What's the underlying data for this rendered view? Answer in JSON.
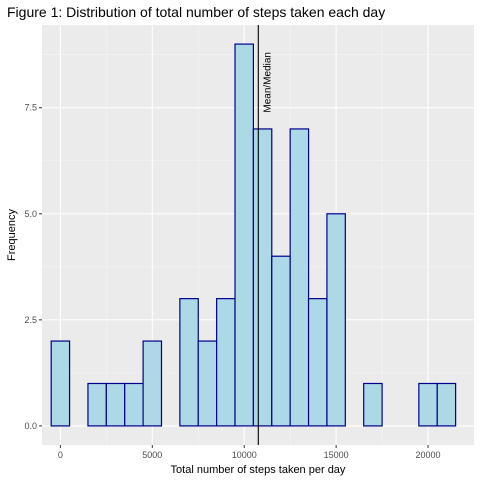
{
  "title": "Figure 1: Distribution of total number of steps taken each day",
  "chart_data": {
    "type": "bar",
    "title": "Figure 1: Distribution of total number of steps taken each day",
    "xlabel": "Total number of steps taken per day",
    "ylabel": "Frequency",
    "xlim": [
      -1000,
      22500
    ],
    "ylim": [
      -0.45,
      9.45
    ],
    "bin_width": 1000,
    "bin_centers": [
      0,
      1000,
      2000,
      3000,
      4000,
      5000,
      6000,
      7000,
      8000,
      9000,
      10000,
      11000,
      12000,
      13000,
      14000,
      15000,
      16000,
      17000,
      18000,
      19000,
      20000,
      21000
    ],
    "values": [
      2,
      0,
      1,
      1,
      1,
      2,
      0,
      3,
      2,
      3,
      9,
      7,
      4,
      7,
      3,
      5,
      0,
      1,
      0,
      0,
      1,
      1
    ],
    "x_ticks": [
      0,
      5000,
      10000,
      15000,
      20000
    ],
    "x_tick_labels": [
      "0",
      "5000",
      "10000",
      "15000",
      "20000"
    ],
    "y_ticks": [
      0,
      2.5,
      5,
      7.5
    ],
    "y_tick_labels": [
      "0.0",
      "2.5",
      "5.0",
      "7.5"
    ],
    "grid": true,
    "colors": {
      "panel": "#ebebeb",
      "grid_major": "#ffffff",
      "bar_fill": "#add8e6",
      "bar_outline": "#00008b",
      "vline": "#000000"
    },
    "vline": {
      "x": 10766,
      "label": "Mean/Median"
    }
  }
}
